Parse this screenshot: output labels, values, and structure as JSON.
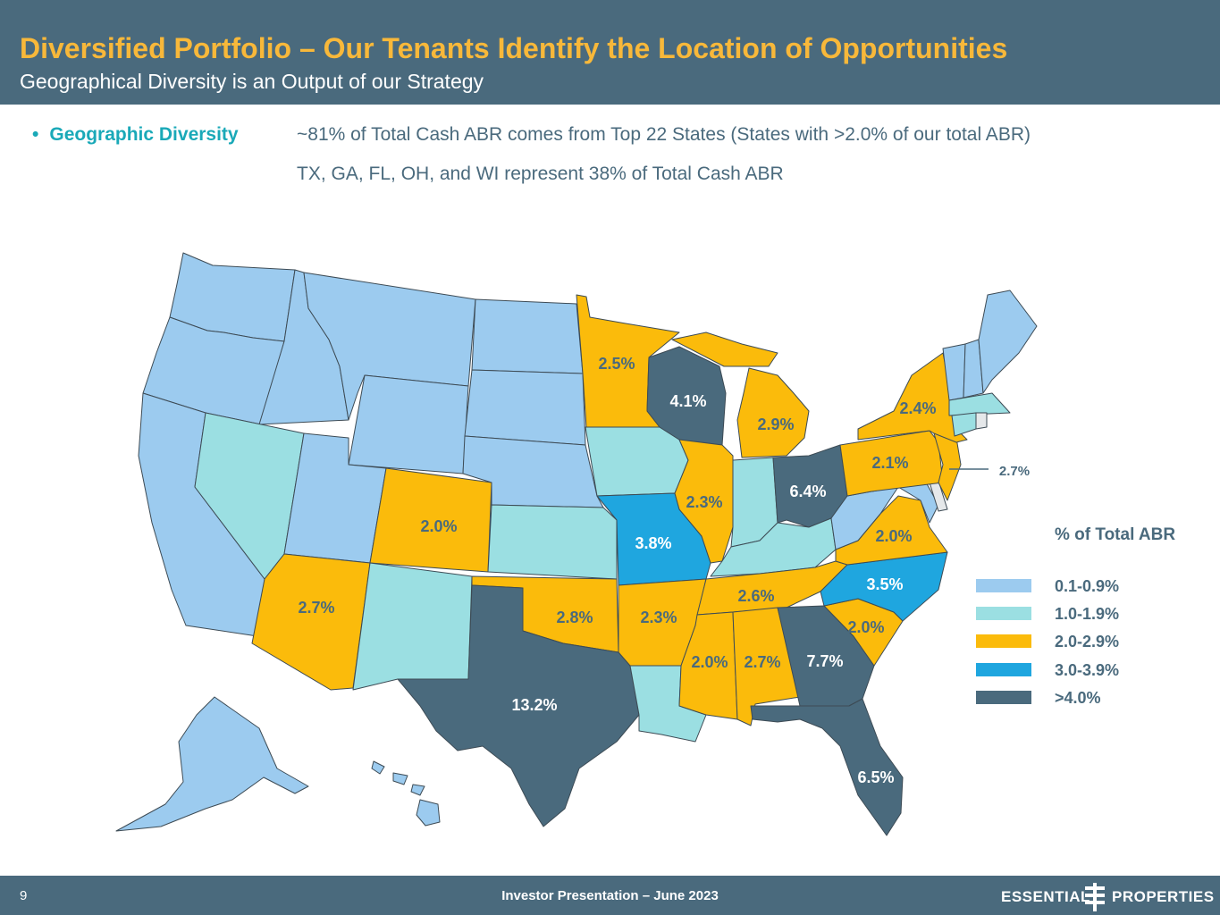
{
  "header": {
    "title": "Diversified Portfolio – Our Tenants Identify the Location of Opportunities",
    "subtitle": "Geographical Diversity is an Output of our Strategy"
  },
  "summary": {
    "bullet_label": "Geographic Diversity",
    "line1": "~81% of Total Cash ABR comes from Top 22 States (States with >2.0% of our total ABR)",
    "line2": "TX, GA, FL, OH, and WI represent 38% of Total Cash ABR"
  },
  "map_labels": {
    "tx": "13.2%",
    "ga": "7.7%",
    "fl": "6.5%",
    "oh": "6.4%",
    "wi": "4.1%",
    "mo": "3.8%",
    "nc": "3.5%",
    "mi": "2.9%",
    "ok": "2.8%",
    "az": "2.7%",
    "al": "2.7%",
    "nj": "2.7%",
    "tn": "2.6%",
    "mn": "2.5%",
    "ny": "2.4%",
    "il": "2.3%",
    "ar": "2.3%",
    "pa": "2.1%",
    "co": "2.0%",
    "va": "2.0%",
    "sc": "2.0%",
    "ms": "2.0%"
  },
  "legend": {
    "title": "% of Total ABR",
    "items": [
      {
        "label": "0.1-0.9%",
        "color": "#9ccbef"
      },
      {
        "label": "1.0-1.9%",
        "color": "#9bdfe2"
      },
      {
        "label": "2.0-2.9%",
        "color": "#fbbb0b"
      },
      {
        "label": "3.0-3.9%",
        "color": "#1fa6df"
      },
      {
        "label": ">4.0%",
        "color": "#4a6a7d"
      }
    ]
  },
  "footer": {
    "page_number": "9",
    "presentation": "Investor Presentation – June 2023",
    "logo_left": "ESSENTIAL",
    "logo_right": "PROPERTIES"
  }
}
